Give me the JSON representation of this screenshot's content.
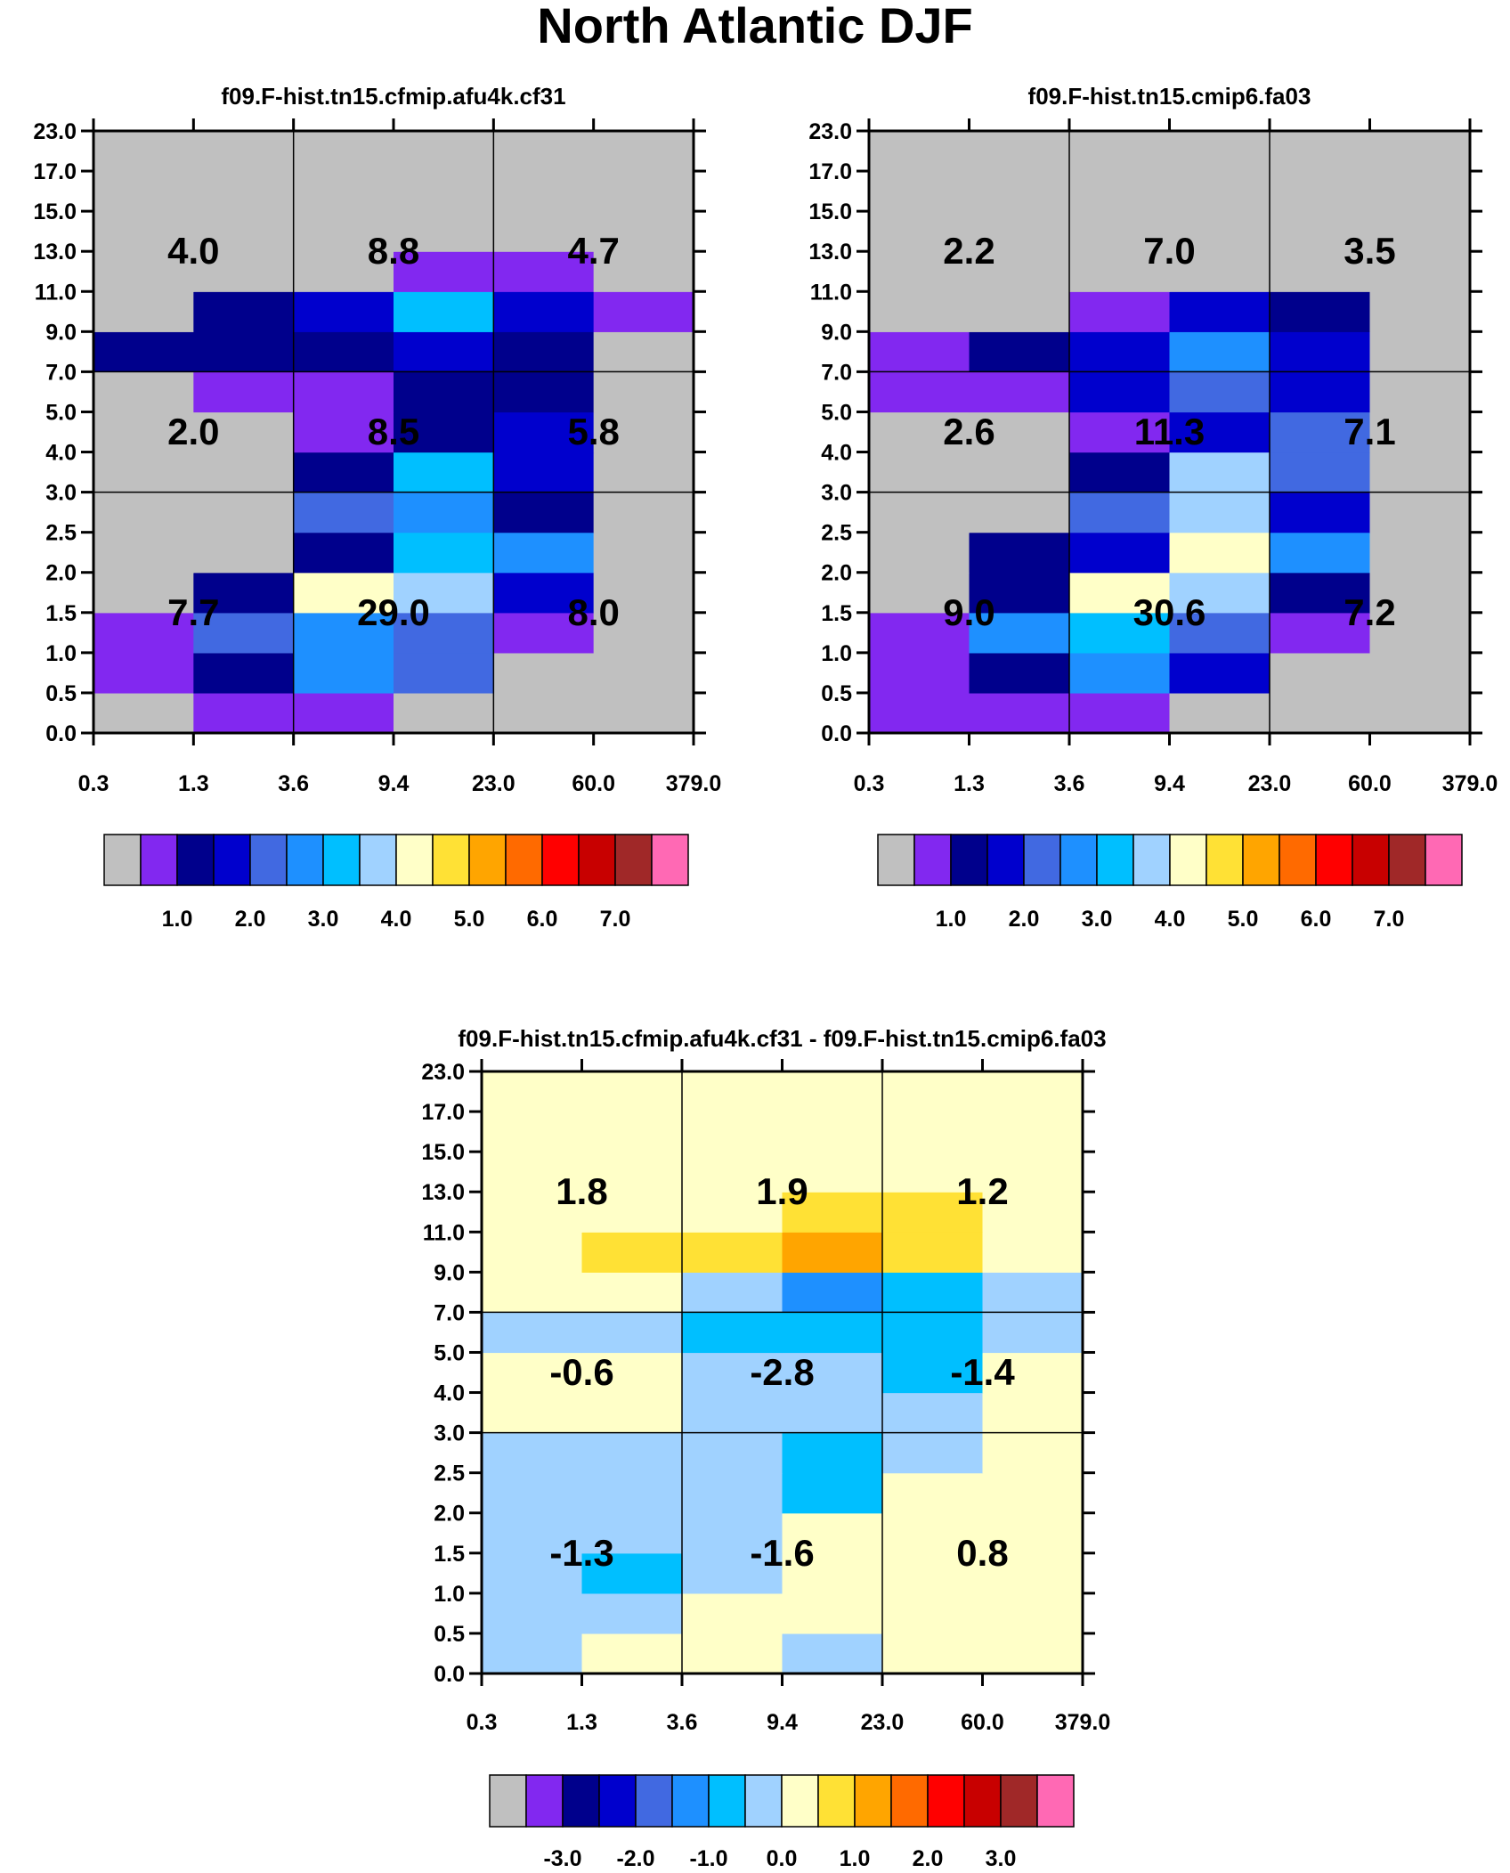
{
  "figure_title": "North Atlantic DJF",
  "colors": {
    "palette": [
      "#c0c0c0",
      "#8228f0",
      "#00008c",
      "#0000cd",
      "#4169e1",
      "#1e90ff",
      "#00bfff",
      "#a0d2ff",
      "#ffffc8",
      "#ffe135",
      "#ffa500",
      "#ff6a00",
      "#ff0000",
      "#c80000",
      "#a02828",
      "#ff69b4"
    ],
    "frame": "#000000"
  },
  "chart_data": [
    {
      "type": "heatmap",
      "title": "f09.F-hist.tn15.cfmip.afu4k.cf31",
      "xlabel": "",
      "ylabel": "",
      "x_tick_labels": [
        "0.3",
        "1.3",
        "3.6",
        "9.4",
        "23.0",
        "60.0",
        "379.0"
      ],
      "y_tick_labels": [
        "0.0",
        "0.5",
        "1.0",
        "1.5",
        "2.0",
        "2.5",
        "3.0",
        "4.0",
        "5.0",
        "7.0",
        "9.0",
        "11.0",
        "13.0",
        "15.0",
        "17.0",
        "23.0"
      ],
      "color_index_grid_bottom_to_top": [
        [
          0,
          1,
          1,
          0,
          0,
          0
        ],
        [
          1,
          2,
          5,
          4,
          0,
          0
        ],
        [
          1,
          4,
          5,
          4,
          1,
          0
        ],
        [
          0,
          2,
          8,
          7,
          3,
          0
        ],
        [
          0,
          0,
          2,
          6,
          5,
          0
        ],
        [
          0,
          0,
          4,
          5,
          2,
          0
        ],
        [
          0,
          0,
          2,
          6,
          3,
          0
        ],
        [
          0,
          0,
          1,
          2,
          3,
          0
        ],
        [
          0,
          1,
          1,
          2,
          2,
          0
        ],
        [
          2,
          2,
          2,
          3,
          2,
          0
        ],
        [
          0,
          2,
          3,
          6,
          3,
          1
        ],
        [
          0,
          0,
          0,
          1,
          1,
          0
        ],
        [
          0,
          0,
          0,
          0,
          0,
          0
        ],
        [
          0,
          0,
          0,
          0,
          0,
          0
        ],
        [
          0,
          0,
          0,
          0,
          0,
          0
        ]
      ],
      "region_values": [
        {
          "col": 0,
          "row": 2,
          "label": "4.0"
        },
        {
          "col": 1,
          "row": 2,
          "label": "8.8"
        },
        {
          "col": 2,
          "row": 2,
          "label": "4.7"
        },
        {
          "col": 0,
          "row": 1,
          "label": "2.0"
        },
        {
          "col": 1,
          "row": 1,
          "label": "8.5"
        },
        {
          "col": 2,
          "row": 1,
          "label": "5.8"
        },
        {
          "col": 0,
          "row": 0,
          "label": "7.7"
        },
        {
          "col": 1,
          "row": 0,
          "label": "29.0"
        },
        {
          "col": 2,
          "row": 0,
          "label": "8.0"
        }
      ],
      "colorbar": {
        "n_boxes": 16,
        "labels": [
          {
            "after_box": 1,
            "text": "1.0"
          },
          {
            "after_box": 3,
            "text": "2.0"
          },
          {
            "after_box": 5,
            "text": "3.0"
          },
          {
            "after_box": 7,
            "text": "4.0"
          },
          {
            "after_box": 9,
            "text": "5.0"
          },
          {
            "after_box": 11,
            "text": "6.0"
          },
          {
            "after_box": 13,
            "text": "7.0"
          }
        ]
      }
    },
    {
      "type": "heatmap",
      "title": "f09.F-hist.tn15.cmip6.fa03",
      "xlabel": "",
      "ylabel": "",
      "x_tick_labels": [
        "0.3",
        "1.3",
        "3.6",
        "9.4",
        "23.0",
        "60.0",
        "379.0"
      ],
      "y_tick_labels": [
        "0.0",
        "0.5",
        "1.0",
        "1.5",
        "2.0",
        "2.5",
        "3.0",
        "4.0",
        "5.0",
        "7.0",
        "9.0",
        "11.0",
        "13.0",
        "15.0",
        "17.0",
        "23.0"
      ],
      "color_index_grid_bottom_to_top": [
        [
          1,
          1,
          1,
          0,
          0,
          0
        ],
        [
          1,
          2,
          5,
          3,
          0,
          0
        ],
        [
          1,
          5,
          6,
          4,
          1,
          0
        ],
        [
          0,
          2,
          8,
          7,
          2,
          0
        ],
        [
          0,
          2,
          3,
          8,
          5,
          0
        ],
        [
          0,
          0,
          4,
          7,
          3,
          0
        ],
        [
          0,
          0,
          2,
          7,
          4,
          0
        ],
        [
          0,
          0,
          1,
          3,
          4,
          0
        ],
        [
          1,
          1,
          3,
          4,
          3,
          0
        ],
        [
          1,
          2,
          3,
          5,
          3,
          0
        ],
        [
          0,
          0,
          1,
          3,
          2,
          0
        ],
        [
          0,
          0,
          0,
          0,
          0,
          0
        ],
        [
          0,
          0,
          0,
          0,
          0,
          0
        ],
        [
          0,
          0,
          0,
          0,
          0,
          0
        ],
        [
          0,
          0,
          0,
          0,
          0,
          0
        ]
      ],
      "region_values": [
        {
          "col": 0,
          "row": 2,
          "label": "2.2"
        },
        {
          "col": 1,
          "row": 2,
          "label": "7.0"
        },
        {
          "col": 2,
          "row": 2,
          "label": "3.5"
        },
        {
          "col": 0,
          "row": 1,
          "label": "2.6"
        },
        {
          "col": 1,
          "row": 1,
          "label": "11.3"
        },
        {
          "col": 2,
          "row": 1,
          "label": "7.1"
        },
        {
          "col": 0,
          "row": 0,
          "label": "9.0"
        },
        {
          "col": 1,
          "row": 0,
          "label": "30.6"
        },
        {
          "col": 2,
          "row": 0,
          "label": "7.2"
        }
      ],
      "colorbar": {
        "n_boxes": 16,
        "labels": [
          {
            "after_box": 1,
            "text": "1.0"
          },
          {
            "after_box": 3,
            "text": "2.0"
          },
          {
            "after_box": 5,
            "text": "3.0"
          },
          {
            "after_box": 7,
            "text": "4.0"
          },
          {
            "after_box": 9,
            "text": "5.0"
          },
          {
            "after_box": 11,
            "text": "6.0"
          },
          {
            "after_box": 13,
            "text": "7.0"
          }
        ]
      }
    },
    {
      "type": "heatmap",
      "title": "f09.F-hist.tn15.cfmip.afu4k.cf31 - f09.F-hist.tn15.cmip6.fa03",
      "xlabel": "",
      "ylabel": "",
      "x_tick_labels": [
        "0.3",
        "1.3",
        "3.6",
        "9.4",
        "23.0",
        "60.0",
        "379.0"
      ],
      "y_tick_labels": [
        "0.0",
        "0.5",
        "1.0",
        "1.5",
        "2.0",
        "2.5",
        "3.0",
        "4.0",
        "5.0",
        "7.0",
        "9.0",
        "11.0",
        "13.0",
        "15.0",
        "17.0",
        "23.0"
      ],
      "color_index_grid_bottom_to_top": [
        [
          7,
          8,
          8,
          7,
          8,
          8
        ],
        [
          7,
          7,
          8,
          8,
          8,
          8
        ],
        [
          7,
          6,
          7,
          8,
          8,
          8
        ],
        [
          7,
          7,
          7,
          8,
          8,
          8
        ],
        [
          7,
          7,
          7,
          6,
          8,
          8
        ],
        [
          7,
          7,
          7,
          6,
          7,
          8
        ],
        [
          8,
          8,
          7,
          7,
          7,
          8
        ],
        [
          8,
          8,
          7,
          7,
          6,
          8
        ],
        [
          7,
          7,
          6,
          6,
          6,
          7
        ],
        [
          8,
          8,
          7,
          5,
          6,
          7
        ],
        [
          8,
          9,
          9,
          10,
          9,
          8
        ],
        [
          8,
          8,
          8,
          9,
          9,
          8
        ],
        [
          8,
          8,
          8,
          8,
          8,
          8
        ],
        [
          8,
          8,
          8,
          8,
          8,
          8
        ],
        [
          8,
          8,
          8,
          8,
          8,
          8
        ]
      ],
      "region_values": [
        {
          "col": 0,
          "row": 2,
          "label": "1.8"
        },
        {
          "col": 1,
          "row": 2,
          "label": "1.9"
        },
        {
          "col": 2,
          "row": 2,
          "label": "1.2"
        },
        {
          "col": 0,
          "row": 1,
          "label": "-0.6"
        },
        {
          "col": 1,
          "row": 1,
          "label": "-2.8"
        },
        {
          "col": 2,
          "row": 1,
          "label": "-1.4"
        },
        {
          "col": 0,
          "row": 0,
          "label": "-1.3"
        },
        {
          "col": 1,
          "row": 0,
          "label": "-1.6"
        },
        {
          "col": 2,
          "row": 0,
          "label": "0.8"
        }
      ],
      "colorbar": {
        "n_boxes": 16,
        "labels": [
          {
            "after_box": 1,
            "text": "-3.0"
          },
          {
            "after_box": 3,
            "text": "-2.0"
          },
          {
            "after_box": 5,
            "text": "-1.0"
          },
          {
            "after_box": 7,
            "text": "0.0"
          },
          {
            "after_box": 9,
            "text": "1.0"
          },
          {
            "after_box": 11,
            "text": "2.0"
          },
          {
            "after_box": 13,
            "text": "3.0"
          }
        ]
      }
    }
  ]
}
